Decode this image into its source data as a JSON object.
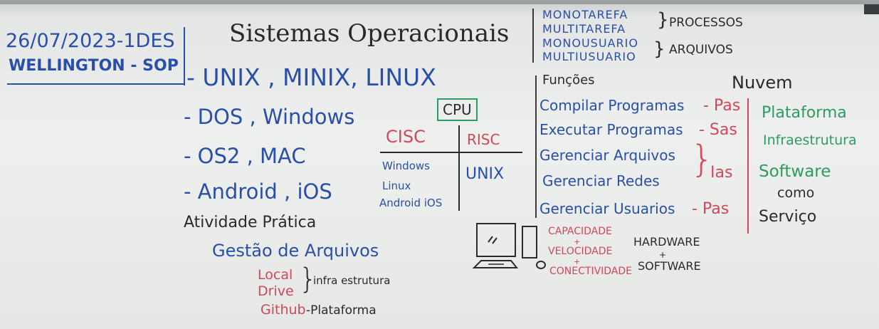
{
  "board": {
    "header": {
      "date_class": "26/07/2023-1DES",
      "teacher": "WELLINGTON - SOP"
    },
    "title": "Sistemas Operacionais",
    "os_list": [
      "- UNIX , MINIX, LINUX",
      "- DOS , Windows",
      "- OS2 , MAC",
      "- Android , iOS"
    ],
    "activity": {
      "heading": "Atividade Prática",
      "subheading": "Gestão de Arquivos",
      "local_drive_1": "Local",
      "local_drive_2": "Drive",
      "infra": "infra estrutura",
      "github": "Github",
      "plataforma": "-Plataforma"
    },
    "cpu": {
      "label": "CPU",
      "cisc": "CISC",
      "risc": "RISC",
      "cisc_items": [
        "Windows",
        "Linux",
        "Android iOS"
      ],
      "risc_items": [
        "UNIX"
      ]
    },
    "top_right": {
      "lines": [
        "MONOTAREFA",
        "MULTITAREFA",
        "MONOUSUARIO",
        "MULTIUSUARIO"
      ],
      "processos": "PROCESSOS",
      "arquivos": "ARQUIVOS"
    },
    "funcoes": {
      "heading": "Funções",
      "items": [
        "Compilar Programas",
        "Executar Programas",
        "Gerenciar Arquivos",
        "Gerenciar Redes",
        "Gerenciar Usuarios"
      ],
      "codes": [
        "- Pas",
        "- Sas",
        "Ias",
        "- Pas"
      ]
    },
    "nuvem": {
      "heading": "Nuvem",
      "items": [
        "Plataforma",
        "Infraestrutura",
        "Software"
      ],
      "como": "como",
      "servico": "Serviço"
    },
    "hardware": {
      "cap": "CAPACIDADE",
      "plus1": "+",
      "vel": "VELOCIDADE",
      "plus2": "+",
      "con": "CONECTIVIDADE",
      "hw": "HARDWARE",
      "plus3": "+",
      "sw": "SOFTWARE"
    }
  }
}
